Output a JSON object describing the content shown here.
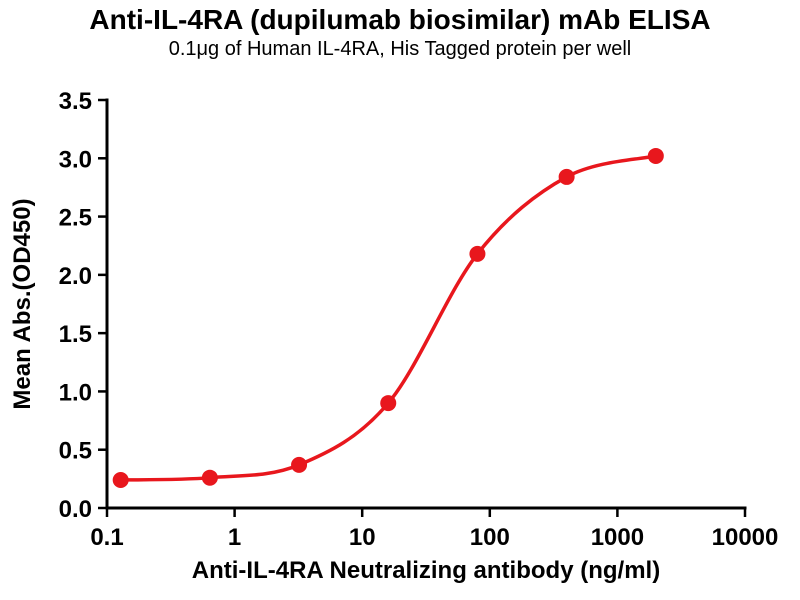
{
  "chart_data": {
    "type": "line",
    "title": "Anti-IL-4RA (dupilumab biosimilar) mAb ELISA",
    "subtitle": "0.1μg of Human IL-4RA, His Tagged protein per well",
    "xlabel": "Anti-IL-4RA Neutralizing antibody (ng/ml)",
    "ylabel": "Mean Abs.(OD450)",
    "xscale": "log",
    "xlim": [
      0.1,
      10000
    ],
    "ylim": [
      0,
      3.5
    ],
    "x_tick_values": [
      0.1,
      1,
      10,
      100,
      1000,
      10000
    ],
    "x_tick_labels": [
      "0.1",
      "1",
      "10",
      "100",
      "1000",
      "10000"
    ],
    "y_tick_values": [
      0,
      0.5,
      1.0,
      1.5,
      2.0,
      2.5,
      3.0,
      3.5
    ],
    "y_tick_labels": [
      "0.0",
      "0.5",
      "1.0",
      "1.5",
      "2.0",
      "2.5",
      "3.0",
      "3.5"
    ],
    "grid": false,
    "legend": "none",
    "series": [
      {
        "x": [
          0.128,
          0.64,
          3.2,
          16,
          80,
          400,
          2000
        ],
        "y": [
          0.24,
          0.26,
          0.37,
          0.9,
          2.18,
          2.84,
          3.02
        ],
        "color": "#e8171d",
        "marker": "circle",
        "marker_radius": 8,
        "line_width": 3.5
      }
    ],
    "axis_color": "#000000",
    "background_color": "#ffffff"
  }
}
